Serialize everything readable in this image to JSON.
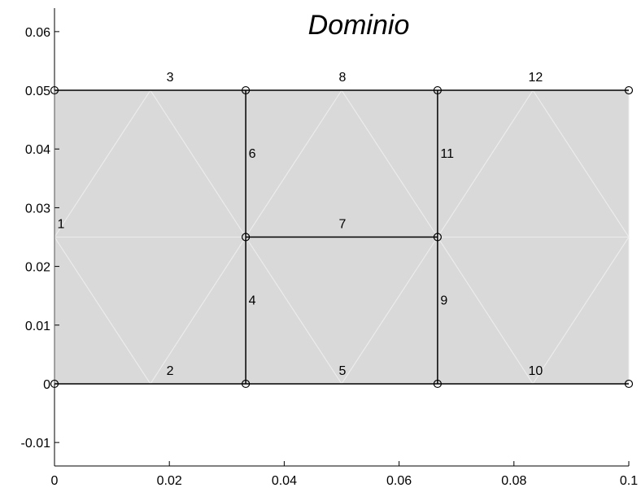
{
  "title": "Dominio",
  "colors": {
    "domain_fill": "#d9d9d9",
    "mesh_line": "#ececec",
    "edge": "#000000",
    "background": "#ffffff"
  },
  "chart_data": {
    "type": "scatter",
    "title": "Dominio",
    "xlabel": "",
    "ylabel": "",
    "xlim": [
      0,
      0.1
    ],
    "ylim": [
      -0.014,
      0.064
    ],
    "xticks": [
      "0",
      "0.02",
      "0.04",
      "0.06",
      "0.08",
      "0.1"
    ],
    "yticks": [
      "-0.01",
      "0",
      "0.01",
      "0.02",
      "0.03",
      "0.04",
      "0.05",
      "0.06"
    ],
    "grid": false,
    "domain": {
      "xmin": 0,
      "xmax": 0.1,
      "ymin": 0,
      "ymax": 0.05
    },
    "nodes": [
      {
        "x": 0,
        "y": 0
      },
      {
        "x": 0.0333,
        "y": 0
      },
      {
        "x": 0.0667,
        "y": 0
      },
      {
        "x": 0.1,
        "y": 0
      },
      {
        "x": 0,
        "y": 0.05
      },
      {
        "x": 0.0333,
        "y": 0.05
      },
      {
        "x": 0.0667,
        "y": 0.05
      },
      {
        "x": 0.1,
        "y": 0.05
      },
      {
        "x": 0.0333,
        "y": 0.025
      },
      {
        "x": 0.0667,
        "y": 0.025
      }
    ],
    "edges": [
      {
        "label": "1",
        "x1": 0,
        "y1": 0,
        "x2": 0,
        "y2": 0.05,
        "lx": 0.0005,
        "ly": 0.0265,
        "anchor": "start"
      },
      {
        "label": "2",
        "x1": 0,
        "y1": 0,
        "x2": 0.0333,
        "y2": 0,
        "lx": 0.0195,
        "ly": 0.0015,
        "anchor": "start"
      },
      {
        "label": "3",
        "x1": 0,
        "y1": 0.05,
        "x2": 0.0333,
        "y2": 0.05,
        "lx": 0.0195,
        "ly": 0.0515,
        "anchor": "start"
      },
      {
        "label": "4",
        "x1": 0.0333,
        "y1": 0,
        "x2": 0.0333,
        "y2": 0.025,
        "lx": 0.0338,
        "ly": 0.0135,
        "anchor": "start"
      },
      {
        "label": "5",
        "x1": 0.0333,
        "y1": 0,
        "x2": 0.0667,
        "y2": 0,
        "lx": 0.0495,
        "ly": 0.0015,
        "anchor": "start"
      },
      {
        "label": "6",
        "x1": 0.0333,
        "y1": 0.025,
        "x2": 0.0333,
        "y2": 0.05,
        "lx": 0.0338,
        "ly": 0.0385,
        "anchor": "start"
      },
      {
        "label": "7",
        "x1": 0.0333,
        "y1": 0.025,
        "x2": 0.0667,
        "y2": 0.025,
        "lx": 0.0495,
        "ly": 0.0265,
        "anchor": "start"
      },
      {
        "label": "8",
        "x1": 0.0333,
        "y1": 0.05,
        "x2": 0.0667,
        "y2": 0.05,
        "lx": 0.0495,
        "ly": 0.0515,
        "anchor": "start"
      },
      {
        "label": "9",
        "x1": 0.0667,
        "y1": 0,
        "x2": 0.0667,
        "y2": 0.025,
        "lx": 0.0672,
        "ly": 0.0135,
        "anchor": "start"
      },
      {
        "label": "10",
        "x1": 0.0667,
        "y1": 0,
        "x2": 0.1,
        "y2": 0,
        "lx": 0.0825,
        "ly": 0.0015,
        "anchor": "start"
      },
      {
        "label": "11",
        "x1": 0.0667,
        "y1": 0.025,
        "x2": 0.0667,
        "y2": 0.05,
        "lx": 0.0672,
        "ly": 0.0385,
        "anchor": "start"
      },
      {
        "label": "12",
        "x1": 0.0667,
        "y1": 0.05,
        "x2": 0.1,
        "y2": 0.05,
        "lx": 0.0825,
        "ly": 0.0515,
        "anchor": "start"
      }
    ],
    "mesh_triangles": [
      [
        [
          0,
          0
        ],
        [
          0.0167,
          0
        ],
        [
          0,
          0.025
        ]
      ],
      [
        [
          0.0167,
          0
        ],
        [
          0.0333,
          0
        ],
        [
          0.0333,
          0.025
        ]
      ],
      [
        [
          0,
          0.025
        ],
        [
          0.0167,
          0
        ],
        [
          0.0333,
          0.025
        ]
      ],
      [
        [
          0,
          0.025
        ],
        [
          0.0333,
          0.025
        ],
        [
          0.0167,
          0.05
        ]
      ],
      [
        [
          0,
          0.025
        ],
        [
          0.0167,
          0.05
        ],
        [
          0,
          0.05
        ]
      ],
      [
        [
          0.0167,
          0.05
        ],
        [
          0.0333,
          0.025
        ],
        [
          0.0333,
          0.05
        ]
      ],
      [
        [
          0.0333,
          0
        ],
        [
          0.05,
          0
        ],
        [
          0.0333,
          0.025
        ]
      ],
      [
        [
          0.05,
          0
        ],
        [
          0.0667,
          0.025
        ],
        [
          0.0333,
          0.025
        ]
      ],
      [
        [
          0.05,
          0
        ],
        [
          0.0667,
          0
        ],
        [
          0.0667,
          0.025
        ]
      ],
      [
        [
          0.0333,
          0.025
        ],
        [
          0.0667,
          0.025
        ],
        [
          0.05,
          0.05
        ]
      ],
      [
        [
          0.0333,
          0.025
        ],
        [
          0.05,
          0.05
        ],
        [
          0.0333,
          0.05
        ]
      ],
      [
        [
          0.05,
          0.05
        ],
        [
          0.0667,
          0.025
        ],
        [
          0.0667,
          0.05
        ]
      ],
      [
        [
          0.0667,
          0
        ],
        [
          0.0833,
          0
        ],
        [
          0.0667,
          0.025
        ]
      ],
      [
        [
          0.0833,
          0
        ],
        [
          0.1,
          0.025
        ],
        [
          0.0667,
          0.025
        ]
      ],
      [
        [
          0.0833,
          0
        ],
        [
          0.1,
          0
        ],
        [
          0.1,
          0.025
        ]
      ],
      [
        [
          0.0667,
          0.025
        ],
        [
          0.1,
          0.025
        ],
        [
          0.0833,
          0.05
        ]
      ],
      [
        [
          0.0667,
          0.025
        ],
        [
          0.0833,
          0.05
        ],
        [
          0.0667,
          0.05
        ]
      ],
      [
        [
          0.0833,
          0.05
        ],
        [
          0.1,
          0.025
        ],
        [
          0.1,
          0.05
        ]
      ]
    ]
  }
}
